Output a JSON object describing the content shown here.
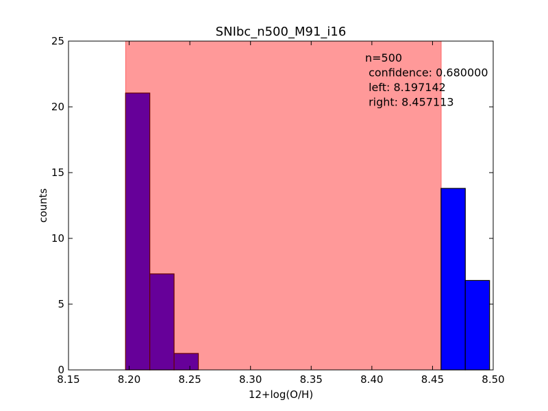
{
  "chart_data": {
    "type": "bar",
    "title": "SNIbc_n500_M91_i16",
    "xlabel": "12+log(O/H)",
    "ylabel": "counts",
    "xlim": [
      8.15,
      8.5
    ],
    "ylim": [
      0,
      25
    ],
    "xticks": [
      "8.15",
      "8.20",
      "8.25",
      "8.30",
      "8.35",
      "8.40",
      "8.45",
      "8.50"
    ],
    "yticks": [
      "0",
      "5",
      "10",
      "15",
      "20",
      "25"
    ],
    "grid": false,
    "confidence_band": {
      "left": 8.197142,
      "right": 8.457113,
      "color": "#ff9999"
    },
    "series": [
      {
        "color": "#660099",
        "bins": [
          {
            "left": 8.197,
            "right": 8.217,
            "value": 21.05
          },
          {
            "left": 8.217,
            "right": 8.237,
            "value": 7.3
          },
          {
            "left": 8.237,
            "right": 8.257,
            "value": 1.25
          }
        ]
      },
      {
        "color": "#0000ff",
        "bins": [
          {
            "left": 8.457,
            "right": 8.477,
            "value": 13.8
          },
          {
            "left": 8.477,
            "right": 8.497,
            "value": 6.8
          }
        ]
      }
    ],
    "annotations": [
      "n=500",
      " confidence: 0.680000",
      " left: 8.197142",
      " right: 8.457113"
    ]
  }
}
